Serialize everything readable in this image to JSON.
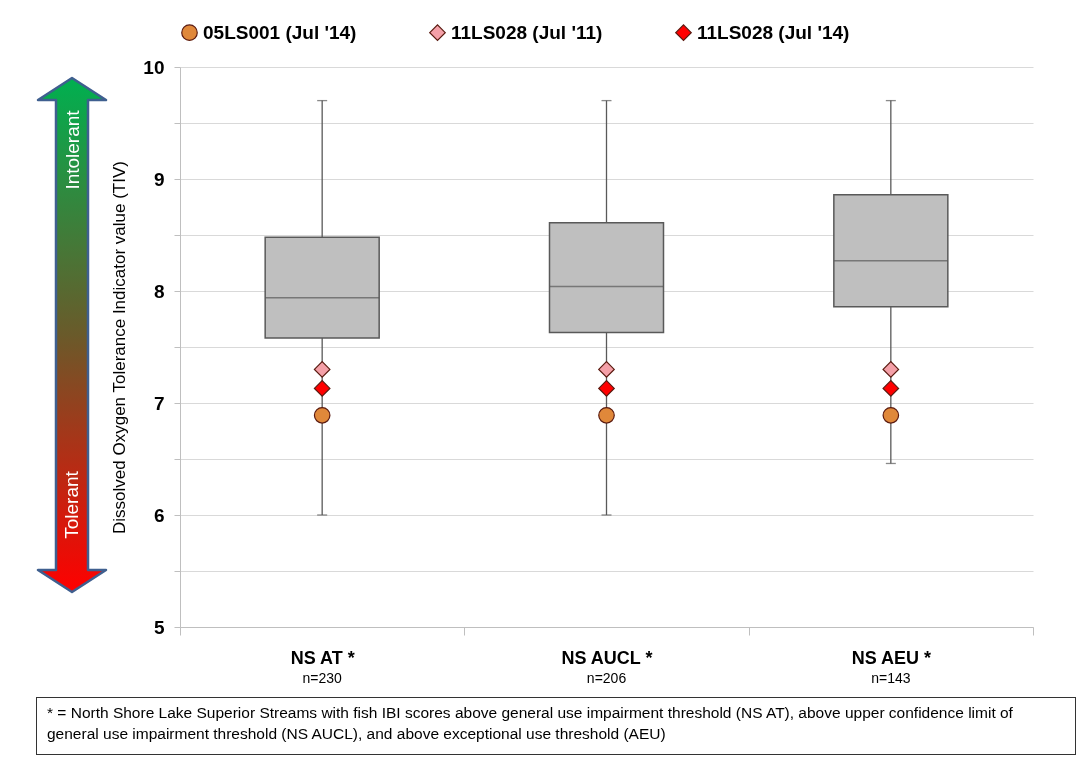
{
  "chart_data": {
    "type": "box",
    "ylabel": "Dissolved Oxygen Tolerance Indicator value (TIV)",
    "categories": [
      "NS AT *",
      "NS AUCL *",
      "NS AEU *"
    ],
    "boxes": [
      {
        "low": 6.0,
        "q1": 7.58,
        "median": 7.94,
        "q3": 8.48,
        "high": 9.7
      },
      {
        "low": 6.0,
        "q1": 7.63,
        "median": 8.04,
        "q3": 8.61,
        "high": 9.7
      },
      {
        "low": 6.46,
        "q1": 7.86,
        "median": 8.27,
        "q3": 8.86,
        "high": 9.7
      }
    ],
    "series": [
      {
        "type": "scatter",
        "name": "05LS001 (Jul '14)",
        "color": "#e0883a",
        "marker": "circle",
        "x": [
          "NS AT *",
          "NS AUCL *",
          "NS AEU *"
        ],
        "values": [
          6.89,
          6.89,
          6.89
        ]
      },
      {
        "type": "scatter",
        "name": "11LS028 (Jul '11)",
        "color": "#f4a0a8",
        "marker": "diamond",
        "x": [
          "NS AT *",
          "NS AUCL *",
          "NS AEU *"
        ],
        "values": [
          7.3,
          7.3,
          7.3
        ]
      },
      {
        "type": "scatter",
        "name": "11LS028 (Jul '14)",
        "color": "#ff0000",
        "marker": "diamond",
        "x": [
          "NS AT *",
          "NS AUCL *",
          "NS AEU *"
        ],
        "values": [
          7.13,
          7.13,
          7.13
        ]
      }
    ],
    "ylim": [
      5,
      10
    ],
    "yticks": [
      5,
      {
        "value": 5.5,
        "label": null
      },
      6,
      {
        "value": 6.5,
        "label": null
      },
      7,
      {
        "value": 7.5,
        "label": null
      },
      8,
      {
        "value": 8.5,
        "label": null
      },
      9,
      {
        "value": 9.5,
        "label": null
      },
      10
    ],
    "grid": "y",
    "legend": "top",
    "annotations": [
      "Intolerant",
      "Tolerant",
      "n=230",
      "n=206",
      "n=143",
      "* = North Shore Lake Superior Streams with fish IBI scores above general use impairment threshold (NS AT), above upper confidence limit of general use impairment threshold (NS AUCL), and above exceptional use threshold (AEU)"
    ]
  }
}
